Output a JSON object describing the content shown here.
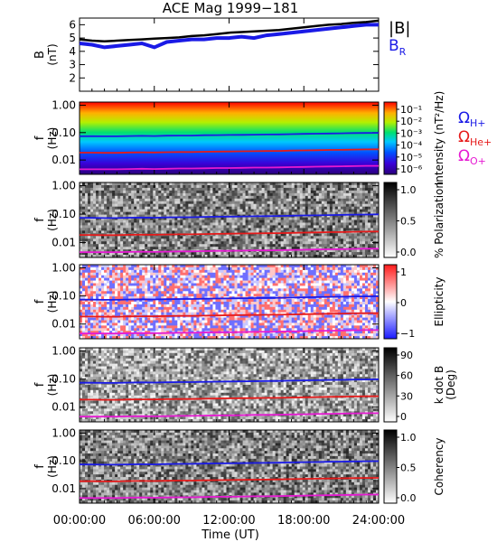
{
  "title": "ACE Mag 1999−181",
  "xaxis": {
    "ticks": [
      "00:00:00",
      "06:00:00",
      "12:00:00",
      "18:00:00",
      "24:00:00"
    ],
    "tick_hours": [
      0,
      6,
      12,
      18,
      24
    ],
    "label": "Time (UT)"
  },
  "legend_bfield": {
    "total": "|B|",
    "radial": "B",
    "radial_sub": "R"
  },
  "legend_gyro": [
    {
      "symbol": "Ω",
      "sub": "H+",
      "color": "#1a1ae6"
    },
    {
      "symbol": "Ω",
      "sub": "He+",
      "color": "#e61a1a"
    },
    {
      "symbol": "Ω",
      "sub": "O+",
      "color": "#e619d2"
    }
  ],
  "colors": {
    "total_B": "#000000",
    "radial_B": "#1a1ae6",
    "h_gyro": "#1a1ae6",
    "he_gyro": "#e61a1a",
    "o_gyro": "#e619d2"
  },
  "panels": [
    {
      "ylabel": "B",
      "yunit": "(nT)",
      "yticks": [
        "2",
        "3",
        "4",
        "5",
        "6"
      ],
      "yrange": [
        1,
        6.5
      ]
    },
    {
      "ylabel": "f",
      "yunit": "(Hz)",
      "yticks": [
        "1.00",
        "0.10",
        "0.01"
      ],
      "colorbar_label": "Intensity (nT²/Hz)",
      "colorbar_ticks": [
        "10⁻¹",
        "10⁻²",
        "10⁻³",
        "10⁻⁴",
        "10⁻⁵",
        "10⁻⁶"
      ]
    },
    {
      "ylabel": "f",
      "yunit": "(Hz)",
      "yticks": [
        "1.00",
        "0.10",
        "0.01"
      ],
      "colorbar_label": "% Polarization",
      "colorbar_ticks": [
        "1.0",
        "0.5",
        "0.0"
      ]
    },
    {
      "ylabel": "f",
      "yunit": "(Hz)",
      "yticks": [
        "1.00",
        "0.10",
        "0.01"
      ],
      "colorbar_label": "Ellipticity",
      "colorbar_ticks": [
        "1",
        "0",
        "−1"
      ]
    },
    {
      "ylabel": "f",
      "yunit": "(Hz)",
      "yticks": [
        "1.00",
        "0.10",
        "0.01"
      ],
      "colorbar_label": "k dot B",
      "colorbar_label2": "(Deg)",
      "colorbar_ticks": [
        "90",
        "60",
        "30",
        "0"
      ]
    },
    {
      "ylabel": "f",
      "yunit": "(Hz)",
      "yticks": [
        "1.00",
        "0.10",
        "0.01"
      ],
      "colorbar_label": "Coherency",
      "colorbar_ticks": [
        "1.0",
        "0.5",
        "0.0"
      ]
    }
  ],
  "chart_data": {
    "type": "line",
    "title": "ACE Mag 1999−181",
    "xlabel": "Time (UT)",
    "x_hours": [
      0,
      1,
      2,
      3,
      4,
      5,
      6,
      7,
      8,
      9,
      10,
      11,
      12,
      13,
      14,
      15,
      16,
      17,
      18,
      19,
      20,
      21,
      22,
      23,
      24
    ],
    "series": [
      {
        "name": "|B|",
        "values": [
          4.9,
          4.8,
          4.75,
          4.8,
          4.85,
          4.9,
          4.95,
          5.0,
          5.05,
          5.15,
          5.2,
          5.3,
          5.4,
          5.45,
          5.5,
          5.55,
          5.6,
          5.7,
          5.8,
          5.9,
          6.0,
          6.05,
          6.15,
          6.2,
          6.3
        ]
      },
      {
        "name": "B_R",
        "values": [
          4.6,
          4.5,
          4.3,
          4.4,
          4.5,
          4.6,
          4.3,
          4.7,
          4.8,
          4.9,
          4.9,
          5.0,
          5.0,
          5.1,
          5.0,
          5.2,
          5.3,
          5.4,
          5.5,
          5.6,
          5.7,
          5.8,
          5.9,
          6.0,
          6.0
        ]
      },
      {
        "name": "ΩH+",
        "unit": "Hz",
        "values": [
          0.074,
          0.074,
          0.073,
          0.073,
          0.075,
          0.076,
          0.075,
          0.077,
          0.078,
          0.078,
          0.08,
          0.081,
          0.082,
          0.083,
          0.084,
          0.085,
          0.086,
          0.088,
          0.09,
          0.091,
          0.093,
          0.094,
          0.096,
          0.097,
          0.098
        ]
      },
      {
        "name": "ΩHe+",
        "unit": "Hz",
        "values": [
          0.0185,
          0.0185,
          0.0183,
          0.0183,
          0.0188,
          0.019,
          0.0188,
          0.0193,
          0.0195,
          0.0195,
          0.02,
          0.0203,
          0.0205,
          0.0208,
          0.021,
          0.0213,
          0.0215,
          0.022,
          0.0225,
          0.0228,
          0.0233,
          0.0235,
          0.024,
          0.0243,
          0.0245
        ]
      },
      {
        "name": "ΩO+",
        "unit": "Hz",
        "values": [
          0.0046,
          0.0046,
          0.0046,
          0.0046,
          0.0047,
          0.0048,
          0.0047,
          0.0048,
          0.0049,
          0.0049,
          0.005,
          0.0051,
          0.0051,
          0.0052,
          0.0053,
          0.0053,
          0.0054,
          0.0055,
          0.0056,
          0.0057,
          0.0058,
          0.0059,
          0.006,
          0.0061,
          0.0061
        ]
      }
    ],
    "spectrogram_panels": [
      "Intensity",
      "% Polarization",
      "Ellipticity",
      "k dot B",
      "Coherency"
    ],
    "yrange_B": [
      1,
      6.5
    ],
    "yrange_f_log": [
      0.003,
      1.3
    ],
    "xrange_hours": [
      0,
      24
    ],
    "yscale_f": "log"
  }
}
